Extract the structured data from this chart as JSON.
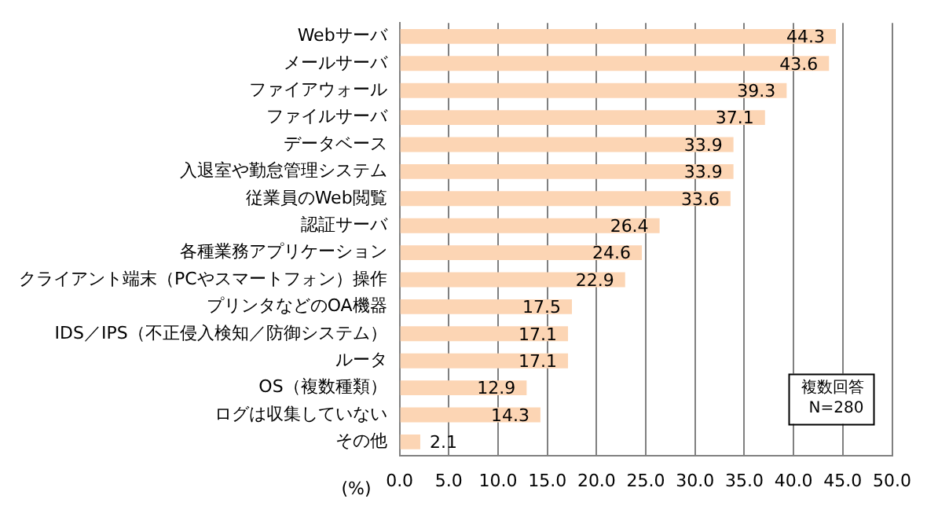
{
  "chart_data": {
    "type": "bar",
    "orientation": "horizontal",
    "categories": [
      "Webサーバ",
      "メールサーバ",
      "ファイアウォール",
      "ファイルサーバ",
      "データベース",
      "入退室や勤怠管理システム",
      "従業員のWeb閲覧",
      "認証サーバ",
      "各種業務アプリケーション",
      "クライアント端末（PCやスマートフォン）操作",
      "プリンタなどのOA機器",
      "IDS／IPS（不正侵入検知／防御システム）",
      "ルータ",
      "OS（複数種類）",
      "ログは収集していない",
      "その他"
    ],
    "values": [
      44.3,
      43.6,
      39.3,
      37.1,
      33.9,
      33.9,
      33.6,
      26.4,
      24.6,
      22.9,
      17.5,
      17.1,
      17.1,
      12.9,
      14.3,
      2.1
    ],
    "color": "#fcd5b4",
    "xlabel": "(%)",
    "xlim": [
      0,
      50
    ],
    "xticks": [
      {
        "value": 0,
        "label": "0.0"
      },
      {
        "value": 5,
        "label": "5.0"
      },
      {
        "value": 10,
        "label": "10.0"
      },
      {
        "value": 15,
        "label": "15.0"
      },
      {
        "value": 20,
        "label": "20.0"
      },
      {
        "value": 25,
        "label": "25.0"
      },
      {
        "value": 30,
        "label": "30.0"
      },
      {
        "value": 35,
        "label": "35.0"
      },
      {
        "value": 40,
        "label": "40.0"
      },
      {
        "value": 45,
        "label": "45.0"
      },
      {
        "value": 50,
        "label": "50.0"
      }
    ],
    "grid": "x",
    "data_labels": true,
    "annotations": [
      "複数回答\nN=280"
    ]
  }
}
